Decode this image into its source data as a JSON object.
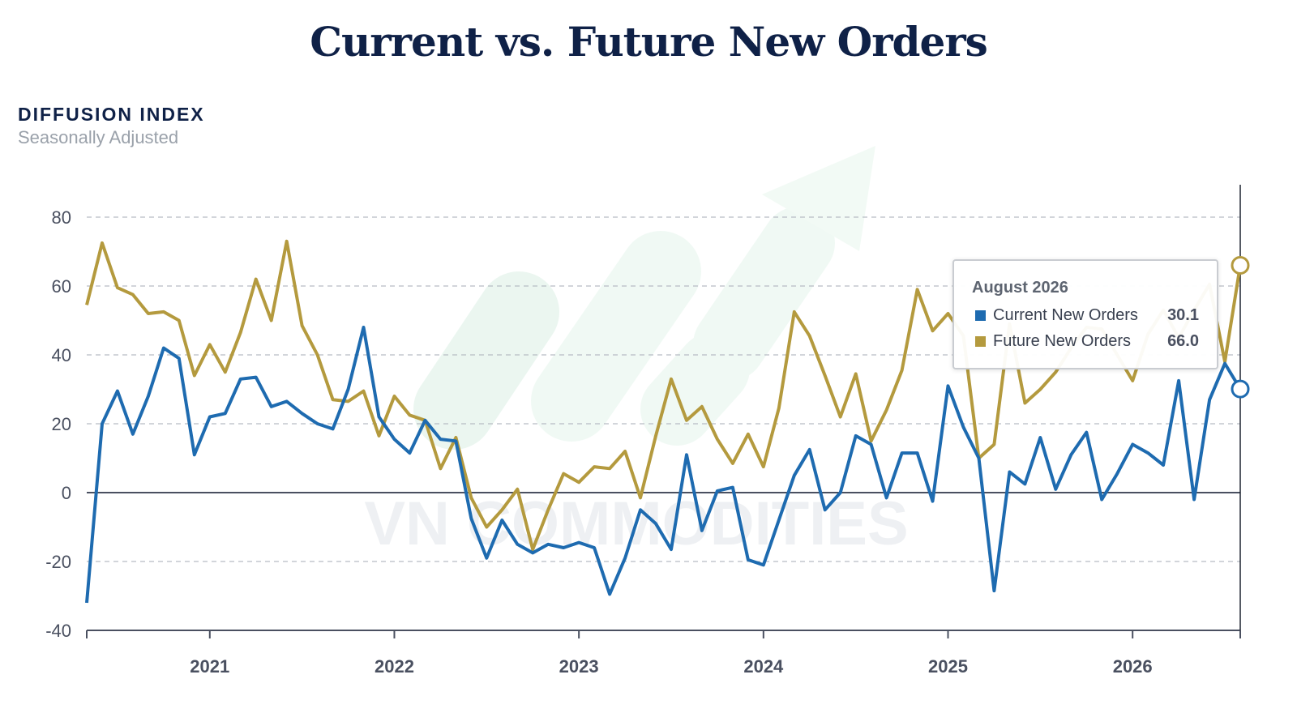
{
  "title": "Current vs. Future New Orders",
  "y_axis_title": "DIFFUSION INDEX",
  "y_axis_subtitle": "Seasonally Adjusted",
  "watermark": "VN COMMODITIES",
  "colors": {
    "current": "#1e6bb0",
    "future": "#b49a3e",
    "title": "#0f2147",
    "grid": "#b7bcc3",
    "axis": "#4a5060"
  },
  "tooltip": {
    "title": "August 2026",
    "rows": [
      {
        "label": "Current New Orders",
        "value": "30.1",
        "color": "#1e6bb0"
      },
      {
        "label": "Future New Orders",
        "value": "66.0",
        "color": "#b49a3e"
      }
    ]
  },
  "chart_data": {
    "type": "line",
    "x_start": "2020-05",
    "x_end": "2026-08",
    "frequency": "monthly",
    "ylim": [
      -40,
      80
    ],
    "yticks": [
      "80",
      "60",
      "40",
      "20",
      "0",
      "-20",
      "-40"
    ],
    "xticks": [
      "2021",
      "2022",
      "2023",
      "2024",
      "2025",
      "2026"
    ],
    "grid": "dashed horizontal",
    "series": [
      {
        "name": "Current New Orders",
        "color": "#1e6bb0",
        "values": [
          -32,
          20,
          29.5,
          17,
          28,
          42,
          39,
          11,
          22,
          23,
          33,
          33.5,
          25,
          26.5,
          23,
          20,
          18.5,
          30,
          48,
          22,
          15.5,
          11.5,
          21,
          15.5,
          15,
          -7.5,
          -19,
          -8,
          -15,
          -17.5,
          -15,
          -16,
          -14.5,
          -16,
          -29.5,
          -19,
          -5,
          -9,
          -16.5,
          11,
          -11,
          0.5,
          1.5,
          -19.5,
          -21,
          -8,
          5,
          12.5,
          -5,
          0,
          16.5,
          14,
          -1.5,
          11.5,
          11.5,
          -2.5,
          31,
          19,
          10,
          -28.5,
          6,
          2.5,
          16,
          1,
          11,
          17.5,
          -2,
          5.5,
          14,
          11.5,
          8,
          32.5,
          -2,
          27,
          37.5,
          30.1
        ]
      },
      {
        "name": "Future New Orders",
        "color": "#b49a3e",
        "values": [
          54.5,
          72.5,
          59.5,
          57.5,
          52,
          52.5,
          50,
          34,
          43,
          35,
          46.5,
          62,
          50,
          73,
          48.5,
          40,
          27,
          26.5,
          29.5,
          16.5,
          28,
          22.5,
          21,
          7,
          16,
          -1.5,
          -10,
          -5,
          1,
          -16.5,
          -5,
          5.5,
          3,
          7.5,
          7,
          12,
          -1.5,
          16.5,
          33,
          21,
          25,
          15.5,
          8.5,
          17,
          7.5,
          24.5,
          52.5,
          45.5,
          34,
          22,
          34.5,
          15,
          24,
          35.5,
          59,
          47,
          52,
          45.5,
          10,
          14,
          49,
          26,
          30,
          35,
          42,
          48,
          47.5,
          40,
          32.5,
          46,
          53,
          45,
          53,
          60.5,
          38,
          66.0
        ]
      }
    ]
  }
}
